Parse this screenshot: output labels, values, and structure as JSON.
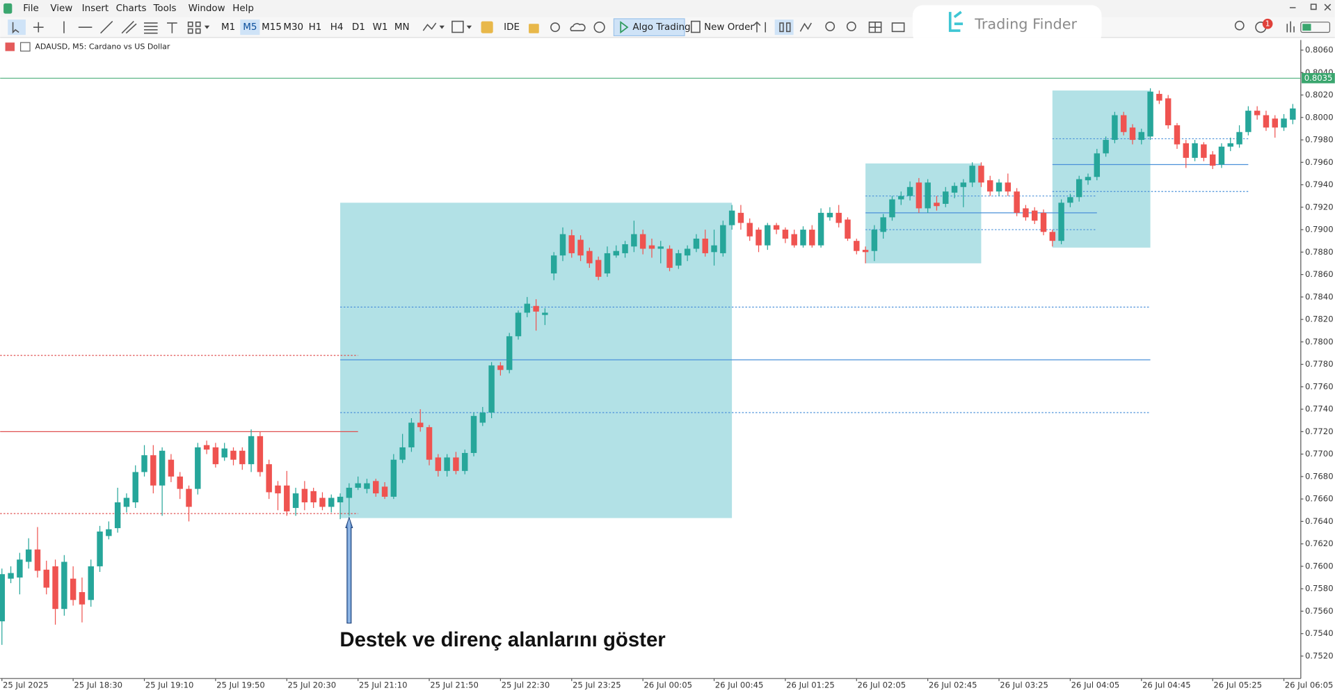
{
  "menu": [
    "File",
    "View",
    "Insert",
    "Charts",
    "Tools",
    "Window",
    "Help"
  ],
  "toolbar": {
    "timeframes": [
      "M1",
      "M5",
      "M15",
      "M30",
      "H1",
      "H4",
      "D1",
      "W1",
      "MN"
    ],
    "active_timeframe": "M5",
    "ide": "IDE",
    "algo_trading": "Algo Trading",
    "new_order": "New Order",
    "notifications": "1"
  },
  "brand": "Trading Finder",
  "chart_data": {
    "type": "candlestick",
    "title": "ADAUSD, M5:  Cardano vs US Dollar",
    "up_color": "#26a69a",
    "down_color": "#ef5350",
    "grid": false,
    "open": [
      0.7551,
      0.7589,
      0.759,
      0.7604,
      0.7615,
      0.7597,
      0.76,
      0.7562,
      0.7589,
      0.7577,
      0.757,
      0.76,
      0.7627,
      0.7634,
      0.7653,
      0.7657,
      0.7684,
      0.7699,
      0.7672,
      0.7695,
      0.768,
      0.7669,
      0.7669,
      0.7708,
      0.7706,
      0.7697,
      0.7703,
      0.7703,
      0.7691,
      0.7716,
      0.7691,
      0.7672,
      0.7672,
      0.7652,
      0.7669,
      0.7667,
      0.7661,
      0.7653,
      0.7657,
      0.7661,
      0.767,
      0.7669,
      0.7676,
      0.7671,
      0.7662,
      0.7695,
      0.7706,
      0.7728,
      0.7724,
      0.7697,
      0.7685,
      0.7697,
      0.7685,
      0.7701,
      0.7728,
      0.7737,
      0.7779,
      0.7775,
      0.7805,
      0.7826,
      0.7832,
      0.7824,
      0.7861,
      0.7877,
      0.7895,
      0.7891,
      0.7881,
      0.7873,
      0.7861,
      0.7877,
      0.7879,
      0.7885,
      0.7896,
      0.7886,
      0.7883,
      0.7883,
      0.7868,
      0.7877,
      0.7883,
      0.7892,
      0.788,
      0.7879,
      0.7904,
      0.7915,
      0.7906,
      0.79,
      0.7886,
      0.7904,
      0.79,
      0.7896,
      0.7886,
      0.79,
      0.7886,
      0.7911,
      0.7915,
      0.7909,
      0.789,
      0.7882,
      0.7881,
      0.7898,
      0.7911,
      0.7927,
      0.793,
      0.7942,
      0.7919,
      0.7924,
      0.7923,
      0.7933,
      0.7938,
      0.7942,
      0.7957,
      0.7944,
      0.7934,
      0.7942,
      0.7934,
      0.7919,
      0.7917,
      0.7915,
      0.7898,
      0.789,
      0.7924,
      0.7929,
      0.7944,
      0.7947,
      0.7968,
      0.798,
      0.8002,
      0.7991,
      0.798,
      0.7983,
      0.8021,
      0.8017,
      0.7993,
      0.7977,
      0.7964,
      0.7976,
      0.7967,
      0.7958,
      0.7974,
      0.7976,
      0.7987,
      0.8006,
      0.8002,
      0.7999,
      0.7991,
      0.7998
    ],
    "high": [
      0.7598,
      0.76,
      0.7612,
      0.7625,
      0.7635,
      0.7605,
      0.7606,
      0.761,
      0.76,
      0.759,
      0.7606,
      0.7636,
      0.764,
      0.767,
      0.7665,
      0.769,
      0.7708,
      0.7708,
      0.7706,
      0.77,
      0.7684,
      0.7672,
      0.771,
      0.7712,
      0.771,
      0.771,
      0.7706,
      0.7706,
      0.7722,
      0.772,
      0.7695,
      0.7676,
      0.7685,
      0.767,
      0.7676,
      0.767,
      0.7666,
      0.7664,
      0.7665,
      0.7674,
      0.768,
      0.7678,
      0.7678,
      0.7675,
      0.77,
      0.7718,
      0.7732,
      0.774,
      0.7726,
      0.77,
      0.77,
      0.7702,
      0.7704,
      0.7737,
      0.7742,
      0.7782,
      0.7782,
      0.7808,
      0.7828,
      0.784,
      0.7838,
      0.783,
      0.788,
      0.7902,
      0.79,
      0.7895,
      0.7884,
      0.7876,
      0.7885,
      0.7886,
      0.789,
      0.7908,
      0.79,
      0.7892,
      0.789,
      0.7886,
      0.7882,
      0.7886,
      0.7896,
      0.79,
      0.79,
      0.7908,
      0.7922,
      0.7922,
      0.791,
      0.7902,
      0.7906,
      0.7906,
      0.7902,
      0.79,
      0.7903,
      0.7904,
      0.7919,
      0.792,
      0.7922,
      0.7911,
      0.7892,
      0.7885,
      0.7904,
      0.7914,
      0.793,
      0.7934,
      0.7943,
      0.7946,
      0.7945,
      0.793,
      0.7938,
      0.7942,
      0.7945,
      0.796,
      0.796,
      0.7948,
      0.7945,
      0.795,
      0.7937,
      0.7922,
      0.792,
      0.7918,
      0.79,
      0.7927,
      0.7932,
      0.7948,
      0.795,
      0.7972,
      0.7983,
      0.8005,
      0.8005,
      0.7994,
      0.799,
      0.8026,
      0.8024,
      0.802,
      0.7995,
      0.798,
      0.798,
      0.7978,
      0.797,
      0.7977,
      0.7982,
      0.7993,
      0.801,
      0.801,
      0.8006,
      0.8002,
      0.8003,
      0.8012
    ],
    "low": [
      0.753,
      0.7585,
      0.7575,
      0.7598,
      0.759,
      0.7575,
      0.7548,
      0.7556,
      0.7565,
      0.755,
      0.7564,
      0.7595,
      0.7624,
      0.763,
      0.7648,
      0.7652,
      0.768,
      0.7665,
      0.7645,
      0.7675,
      0.766,
      0.764,
      0.7664,
      0.77,
      0.7688,
      0.7694,
      0.769,
      0.7686,
      0.7684,
      0.768,
      0.766,
      0.765,
      0.7645,
      0.7645,
      0.765,
      0.7652,
      0.765,
      0.7648,
      0.7642,
      0.7645,
      0.7668,
      0.7665,
      0.7662,
      0.766,
      0.766,
      0.7692,
      0.7702,
      0.772,
      0.769,
      0.768,
      0.768,
      0.7682,
      0.7682,
      0.7698,
      0.7725,
      0.7732,
      0.777,
      0.7772,
      0.7802,
      0.7822,
      0.781,
      0.7815,
      0.7855,
      0.7872,
      0.7875,
      0.7872,
      0.7866,
      0.7855,
      0.7858,
      0.7875,
      0.7875,
      0.788,
      0.7878,
      0.7875,
      0.787,
      0.7863,
      0.7865,
      0.7872,
      0.788,
      0.7876,
      0.7868,
      0.7876,
      0.79,
      0.79,
      0.789,
      0.788,
      0.7882,
      0.7896,
      0.7888,
      0.7884,
      0.7884,
      0.7884,
      0.7884,
      0.7908,
      0.7902,
      0.789,
      0.7878,
      0.787,
      0.7872,
      0.7892,
      0.7908,
      0.7922,
      0.7926,
      0.7915,
      0.7915,
      0.7917,
      0.792,
      0.7928,
      0.792,
      0.7938,
      0.7938,
      0.793,
      0.793,
      0.793,
      0.7912,
      0.7908,
      0.7905,
      0.7895,
      0.7885,
      0.7887,
      0.792,
      0.7925,
      0.794,
      0.7944,
      0.7965,
      0.7977,
      0.7984,
      0.7976,
      0.7976,
      0.798,
      0.8012,
      0.799,
      0.7972,
      0.7955,
      0.7961,
      0.7961,
      0.7954,
      0.7955,
      0.797,
      0.7973,
      0.7984,
      0.7998,
      0.7988,
      0.7982,
      0.7988,
      0.7994
    ],
    "close": [
      0.7593,
      0.7594,
      0.7606,
      0.7615,
      0.7596,
      0.7581,
      0.7562,
      0.7604,
      0.757,
      0.7566,
      0.76,
      0.7631,
      0.7633,
      0.7657,
      0.7661,
      0.7684,
      0.7699,
      0.7672,
      0.7703,
      0.768,
      0.7669,
      0.7653,
      0.7706,
      0.7704,
      0.7691,
      0.7705,
      0.7695,
      0.7691,
      0.7716,
      0.7684,
      0.7666,
      0.7665,
      0.7649,
      0.7665,
      0.7657,
      0.7657,
      0.7653,
      0.7661,
      0.7662,
      0.767,
      0.7674,
      0.7674,
      0.7665,
      0.7662,
      0.7695,
      0.7706,
      0.7728,
      0.7724,
      0.7695,
      0.7685,
      0.7697,
      0.7685,
      0.7701,
      0.7734,
      0.7737,
      0.7779,
      0.7775,
      0.7805,
      0.7826,
      0.7834,
      0.7827,
      0.7826,
      0.7877,
      0.7896,
      0.7879,
      0.7877,
      0.787,
      0.7858,
      0.7879,
      0.7881,
      0.7887,
      0.7896,
      0.7883,
      0.7883,
      0.7885,
      0.7866,
      0.7879,
      0.7883,
      0.7892,
      0.7879,
      0.7886,
      0.7904,
      0.7917,
      0.7906,
      0.7894,
      0.7886,
      0.7904,
      0.79,
      0.7892,
      0.7886,
      0.79,
      0.7886,
      0.7915,
      0.7915,
      0.7906,
      0.7892,
      0.7881,
      0.788,
      0.79,
      0.7911,
      0.7927,
      0.793,
      0.7938,
      0.7919,
      0.7942,
      0.7921,
      0.7934,
      0.7939,
      0.7942,
      0.7957,
      0.7942,
      0.7934,
      0.7942,
      0.7934,
      0.7915,
      0.7911,
      0.7908,
      0.7898,
      0.789,
      0.7924,
      0.7929,
      0.7945,
      0.7947,
      0.7968,
      0.798,
      0.8002,
      0.7987,
      0.798,
      0.7987,
      0.8023,
      0.8015,
      0.7993,
      0.7976,
      0.7964,
      0.7977,
      0.7964,
      0.7957,
      0.7974,
      0.7977,
      0.7987,
      0.8006,
      0.8002,
      0.7991,
      0.7991,
      0.7999,
      0.8008
    ],
    "xlim": [
      -0.2,
      145.9
    ],
    "xticks": [
      {
        "value": 0,
        "label": "25 Jul 2025"
      },
      {
        "value": 8,
        "label": "25 Jul 18:30"
      },
      {
        "value": 16,
        "label": "25 Jul 19:10"
      },
      {
        "value": 24,
        "label": "25 Jul 19:50"
      },
      {
        "value": 32,
        "label": "25 Jul 20:30"
      },
      {
        "value": 40,
        "label": "25 Jul 21:10"
      },
      {
        "value": 48,
        "label": "25 Jul 21:50"
      },
      {
        "value": 56,
        "label": "25 Jul 22:30"
      },
      {
        "value": 64,
        "label": "25 Jul 23:25"
      },
      {
        "value": 72,
        "label": "26 Jul 00:05"
      },
      {
        "value": 80,
        "label": "26 Jul 00:45"
      },
      {
        "value": 88,
        "label": "26 Jul 01:25"
      },
      {
        "value": 96,
        "label": "26 Jul 02:05"
      },
      {
        "value": 104,
        "label": "26 Jul 02:45"
      },
      {
        "value": 112,
        "label": "26 Jul 03:25"
      },
      {
        "value": 120,
        "label": "26 Jul 04:05"
      },
      {
        "value": 128,
        "label": "26 Jul 04:45"
      },
      {
        "value": 136,
        "label": "26 Jul 05:25"
      },
      {
        "value": 144,
        "label": "26 Jul 06:05"
      }
    ],
    "ylim": [
      0.75,
      0.8069
    ],
    "yticks": [
      {
        "value": 0.752,
        "label": "0.7520"
      },
      {
        "value": 0.754,
        "label": "0.7540"
      },
      {
        "value": 0.756,
        "label": "0.7560"
      },
      {
        "value": 0.758,
        "label": "0.7580"
      },
      {
        "value": 0.76,
        "label": "0.7600"
      },
      {
        "value": 0.762,
        "label": "0.7620"
      },
      {
        "value": 0.764,
        "label": "0.7640"
      },
      {
        "value": 0.766,
        "label": "0.7660"
      },
      {
        "value": 0.768,
        "label": "0.7680"
      },
      {
        "value": 0.77,
        "label": "0.7700"
      },
      {
        "value": 0.772,
        "label": "0.7720"
      },
      {
        "value": 0.774,
        "label": "0.7740"
      },
      {
        "value": 0.776,
        "label": "0.7760"
      },
      {
        "value": 0.778,
        "label": "0.7780"
      },
      {
        "value": 0.78,
        "label": "0.7800"
      },
      {
        "value": 0.782,
        "label": "0.7820"
      },
      {
        "value": 0.784,
        "label": "0.7840"
      },
      {
        "value": 0.786,
        "label": "0.7860"
      },
      {
        "value": 0.788,
        "label": "0.7880"
      },
      {
        "value": 0.79,
        "label": "0.7900"
      },
      {
        "value": 0.792,
        "label": "0.7920"
      },
      {
        "value": 0.794,
        "label": "0.7940"
      },
      {
        "value": 0.796,
        "label": "0.7960"
      },
      {
        "value": 0.798,
        "label": "0.7980"
      },
      {
        "value": 0.8,
        "label": "0.8000"
      },
      {
        "value": 0.802,
        "label": "0.8020"
      },
      {
        "value": 0.804,
        "label": "0.8040"
      },
      {
        "value": 0.806,
        "label": "0.8060"
      }
    ],
    "current_price": {
      "value": 0.8035,
      "label": "0.8035",
      "color": "#3aa66e"
    },
    "zones": [
      {
        "x": [
          38,
          82
        ],
        "y": [
          0.7643,
          0.7924
        ]
      },
      {
        "x": [
          97,
          110
        ],
        "y": [
          0.787,
          0.7959
        ]
      },
      {
        "x": [
          118,
          129
        ],
        "y": [
          0.7884,
          0.8024
        ]
      }
    ],
    "zone_color": "#b2e1e6",
    "levels": [
      {
        "value": 0.7831,
        "x": [
          38,
          129
        ],
        "color": "#4a90d9",
        "style": "dotted"
      },
      {
        "value": 0.7784,
        "x": [
          38,
          129
        ],
        "color": "#4a90d9",
        "style": "solid"
      },
      {
        "value": 0.7737,
        "x": [
          38,
          129
        ],
        "color": "#4a90d9",
        "style": "dotted"
      },
      {
        "value": 0.793,
        "x": [
          97,
          123
        ],
        "color": "#4a90d9",
        "style": "dotted"
      },
      {
        "value": 0.7915,
        "x": [
          97,
          123
        ],
        "color": "#4a90d9",
        "style": "solid"
      },
      {
        "value": 0.79,
        "x": [
          97,
          123
        ],
        "color": "#4a90d9",
        "style": "dotted"
      },
      {
        "value": 0.7981,
        "x": [
          118,
          140
        ],
        "color": "#4a90d9",
        "style": "dotted"
      },
      {
        "value": 0.7958,
        "x": [
          118,
          140
        ],
        "color": "#4a90d9",
        "style": "solid"
      },
      {
        "value": 0.7934,
        "x": [
          118,
          140
        ],
        "color": "#4a90d9",
        "style": "dotted"
      },
      {
        "value": 0.7788,
        "x": [
          -0.2,
          40
        ],
        "color": "#e05050",
        "style": "dotted"
      },
      {
        "value": 0.772,
        "x": [
          -0.2,
          40
        ],
        "color": "#e05050",
        "style": "solid"
      },
      {
        "value": 0.7647,
        "x": [
          -0.2,
          40
        ],
        "color": "#e05050",
        "style": "dotted"
      }
    ],
    "annotation": {
      "text": "Destek ve direnç alanlarını göster",
      "x": 39,
      "y": 0.7645
    }
  }
}
